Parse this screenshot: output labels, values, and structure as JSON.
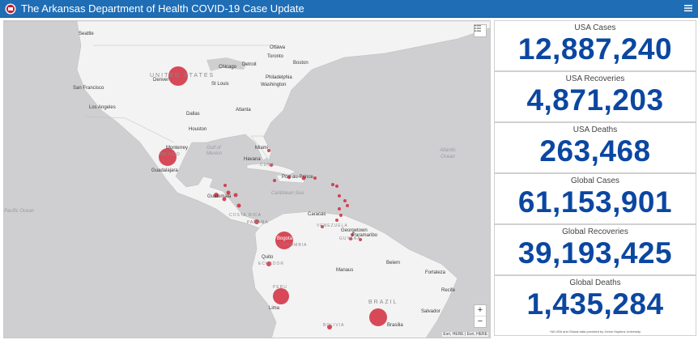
{
  "header": {
    "title": "The Arkansas Department of Health COVID-19 Case Update",
    "bg_color": "#1f6db5"
  },
  "map": {
    "cities": [
      "Seattle",
      "Ottawa",
      "Toronto",
      "Boston",
      "Chicago",
      "Detroit",
      "Philadelphia",
      "Washington",
      "Denver",
      "St Louis",
      "San Francisco",
      "Los Angeles",
      "Dallas",
      "Atlanta",
      "Houston",
      "Miami",
      "Havana",
      "Monterrey",
      "Guadalajara",
      "Guatemala",
      "Port-au-Prince",
      "Caracas",
      "Georgetown",
      "Paramaribo",
      "Bogota",
      "Quito",
      "Manaus",
      "Belem",
      "Fortaleza",
      "Recife",
      "Lima",
      "Salvador",
      "Brasilia"
    ],
    "countries": [
      "UNITED STATES",
      "MEXICO",
      "CUBA",
      "COSTA RICA",
      "PANAMA",
      "VENEZUELA",
      "GUYANA",
      "COLOMBIA",
      "ECUADOR",
      "PERU",
      "BRAZIL",
      "BOLIVIA"
    ],
    "seas": [
      "Gulf of Mexico",
      "Caribbean Sea",
      "Atlantic Ocean",
      "Pacific Ocean"
    ],
    "attribution": "Esri, HERE | Esri, HERE",
    "zoom_in": "+",
    "zoom_out": "−",
    "marker_color": "#d12a3c"
  },
  "stats": [
    {
      "label": "USA Cases",
      "value": "12,887,240"
    },
    {
      "label": "USA Recoveries",
      "value": "4,871,203"
    },
    {
      "label": "USA Deaths",
      "value": "263,468"
    },
    {
      "label": "Global Cases",
      "value": "61,153,901"
    },
    {
      "label": "Global Recoveries",
      "value": "39,193,425"
    },
    {
      "label": "Global Deaths",
      "value": "1,435,284"
    }
  ],
  "footnote": "*All USA and Global data provided by Johns Hopkins University",
  "value_color": "#0b47a1"
}
